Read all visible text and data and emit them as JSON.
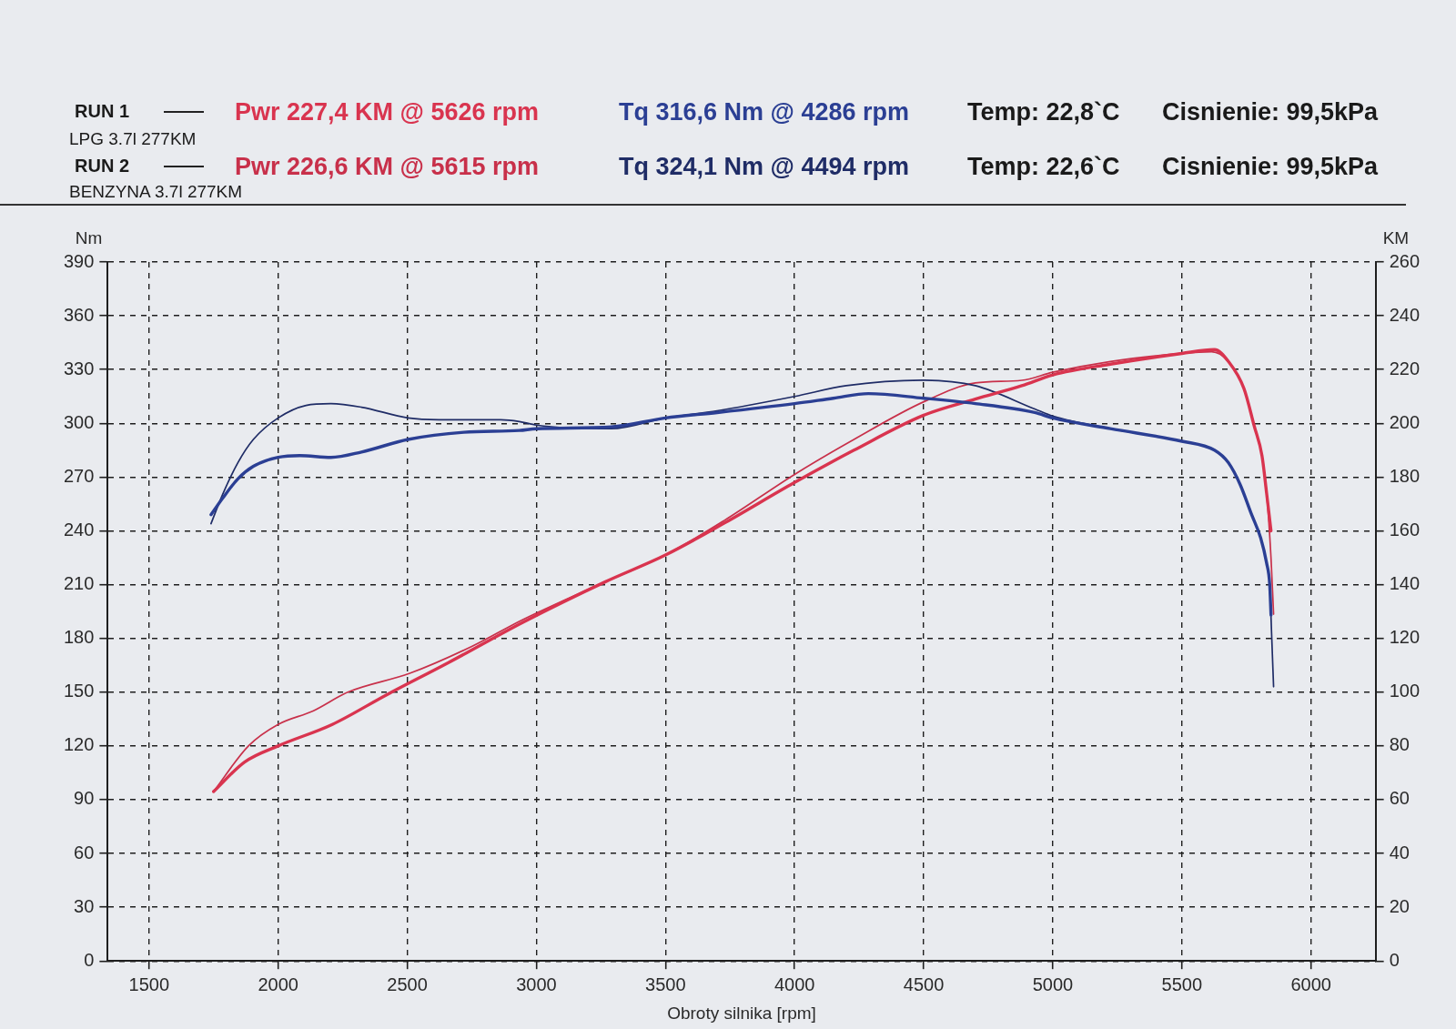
{
  "chart_data": {
    "type": "line",
    "annotations": [
      "RUN 1",
      "Pwr 227,4 KM @ 5626 rpm",
      "Tq 316,6 Nm @ 4286 rpm",
      "Temp: 22,8`C",
      "Cisnienie: 99,5kPa",
      "LPG 3.7l 277KM",
      "RUN 2",
      "Pwr 226,6 KM @ 5615 rpm",
      "Tq 324,1 Nm @ 4494 rpm",
      "Temp: 22,6`C",
      "Cisnienie: 99,5kPa",
      "BENZYNA 3.7l 277KM"
    ],
    "xlabel": "Obroty silnika [rpm]",
    "ylabel": "Nm",
    "y2label": "KM",
    "xlim": [
      1340,
      6250
    ],
    "xticks": [
      1500,
      2000,
      2500,
      3000,
      3500,
      4000,
      4500,
      5000,
      5500,
      6000
    ],
    "ylim": [
      0,
      390
    ],
    "yticks": [
      0,
      30,
      60,
      90,
      120,
      150,
      180,
      210,
      240,
      270,
      300,
      330,
      360,
      390
    ],
    "y2lim": [
      0,
      260
    ],
    "y2ticks": [
      0,
      20,
      40,
      60,
      80,
      100,
      120,
      140,
      160,
      180,
      200,
      220,
      240,
      260
    ],
    "grid": true,
    "legend": false,
    "series": [
      {
        "color": "#2b3f94",
        "x": [
          1740,
          1784,
          1844,
          1904,
          2000,
          2084,
          2204,
          2323,
          2503,
          2719,
          2934,
          3000,
          3290,
          3500,
          3700,
          4000,
          4150,
          4286,
          4500,
          4700,
          4930,
          5000,
          5223,
          5500,
          5626,
          5680,
          5725,
          5770,
          5805,
          5828,
          5840,
          5845
        ],
        "values": [
          249,
          258,
          269,
          276,
          281,
          282,
          281,
          284,
          291,
          295,
          296,
          297,
          298,
          303,
          306,
          311,
          314,
          316.6,
          314,
          311,
          306,
          303,
          297,
          290,
          285,
          278,
          266,
          249,
          236,
          222,
          210,
          193
        ]
      },
      {
        "color": "#d9344f",
        "axis": "y2",
        "x": [
          1750,
          1870,
          2000,
          2210,
          2420,
          2660,
          2948,
          3266,
          3500,
          3730,
          4000,
          4230,
          4500,
          4700,
          4880,
          5000,
          5223,
          5500,
          5626,
          5680,
          5740,
          5780,
          5810,
          5828,
          5845
        ],
        "values": [
          63,
          74,
          80,
          88,
          99,
          111,
          126,
          141,
          151,
          163,
          178,
          190,
          203,
          209,
          214,
          218,
          222,
          226,
          227.4,
          223,
          213,
          199,
          188,
          174,
          160
        ]
      },
      {
        "color": "#1f2c66",
        "x": [
          1740,
          1784,
          1844,
          1904,
          2000,
          2108,
          2204,
          2323,
          2503,
          2623,
          2862,
          2934,
          3000,
          3290,
          3500,
          3700,
          4000,
          4200,
          4494,
          4700,
          4930,
          5000,
          5223,
          5500,
          5626,
          5680,
          5725,
          5770,
          5805,
          5828,
          5840,
          5848,
          5855
        ],
        "values": [
          244,
          260,
          278,
          291,
          303,
          310,
          311,
          309,
          303,
          302,
          302,
          301,
          299,
          297,
          303,
          307,
          315,
          321,
          324.1,
          321,
          308,
          304,
          297,
          290,
          285,
          278,
          266,
          249,
          236,
          222,
          210,
          180,
          153
        ]
      },
      {
        "color": "#c8304a",
        "axis": "y2",
        "x": [
          1750,
          1885,
          2000,
          2135,
          2270,
          2510,
          2750,
          2948,
          3266,
          3500,
          3730,
          4000,
          4230,
          4500,
          4700,
          4880,
          5000,
          5223,
          5500,
          5615,
          5680,
          5740,
          5780,
          5810,
          5828,
          5845,
          5855
        ],
        "values": [
          63,
          80,
          88,
          93,
          100,
          107,
          117,
          127,
          141,
          151,
          164,
          181,
          194,
          208,
          215,
          216,
          219,
          223,
          226,
          226.6,
          223,
          213,
          199,
          188,
          174,
          150,
          129
        ]
      }
    ]
  }
}
